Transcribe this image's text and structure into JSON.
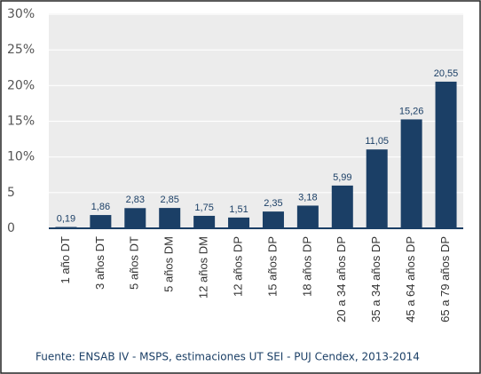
{
  "chart_data": {
    "type": "bar",
    "categories": [
      "1 año DT",
      "3 años DT",
      "5 años DT",
      "5 años DM",
      "12 años DM",
      "12 años DP",
      "15 años DP",
      "18 años DP",
      "20 a 34 años DP",
      "35 a 34 años DP",
      "45 a 64 años DP",
      "65 a 79 años DP"
    ],
    "values": [
      0.19,
      1.86,
      2.83,
      2.85,
      1.75,
      1.51,
      2.35,
      3.18,
      5.99,
      11.05,
      15.26,
      20.55
    ],
    "value_labels": [
      "0,19",
      "1,86",
      "2,83",
      "2,85",
      "1,75",
      "1,51",
      "2,35",
      "3,18",
      "5,99",
      "11,05",
      "15,26",
      "20,55"
    ],
    "color": "#1b3f66",
    "ylim": [
      0,
      30
    ],
    "yticks": [
      0,
      5,
      {
        "value": 10,
        "label": "10%"
      },
      {
        "value": 15,
        "label": "15%"
      },
      {
        "value": 20,
        "label": "20%"
      },
      {
        "value": 25,
        "label": "25%"
      },
      {
        "value": 30,
        "label": "30%"
      }
    ],
    "grid": true,
    "source": "Fuente: ENSAB IV - MSPS, estimaciones UT SEI - PUJ Cendex, 2013-2014"
  }
}
